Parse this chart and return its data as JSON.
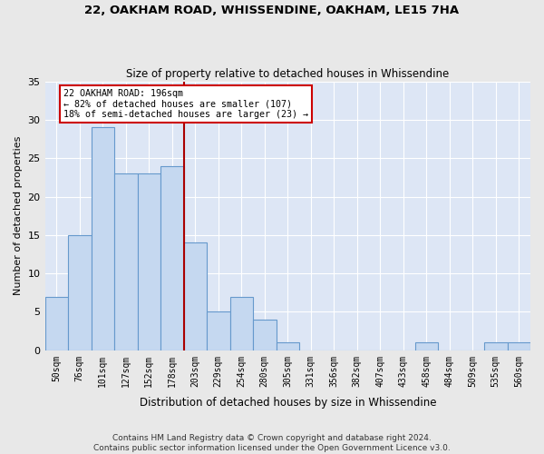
{
  "title1": "22, OAKHAM ROAD, WHISSENDINE, OAKHAM, LE15 7HA",
  "title2": "Size of property relative to detached houses in Whissendine",
  "xlabel": "Distribution of detached houses by size in Whissendine",
  "ylabel": "Number of detached properties",
  "footnote": "Contains HM Land Registry data © Crown copyright and database right 2024.\nContains public sector information licensed under the Open Government Licence v3.0.",
  "categories": [
    "50sqm",
    "76sqm",
    "101sqm",
    "127sqm",
    "152sqm",
    "178sqm",
    "203sqm",
    "229sqm",
    "254sqm",
    "280sqm",
    "305sqm",
    "331sqm",
    "356sqm",
    "382sqm",
    "407sqm",
    "433sqm",
    "458sqm",
    "484sqm",
    "509sqm",
    "535sqm",
    "560sqm"
  ],
  "values": [
    7,
    15,
    29,
    23,
    23,
    24,
    14,
    5,
    7,
    4,
    1,
    0,
    0,
    0,
    0,
    0,
    1,
    0,
    0,
    1,
    1
  ],
  "bar_color": "#c5d8f0",
  "bar_edge_color": "#6699cc",
  "background_color": "#dde6f5",
  "fig_background": "#e8e8e8",
  "property_line_label": "22 OAKHAM ROAD: 196sqm",
  "annotation_line1": "← 82% of detached houses are smaller (107)",
  "annotation_line2": "18% of semi-detached houses are larger (23) →",
  "vline_color": "#aa0000",
  "vline_x_category_index": 5.5,
  "annotation_box_color": "#ffffff",
  "annotation_box_edge": "#cc0000",
  "ylim": [
    0,
    35
  ],
  "yticks": [
    0,
    5,
    10,
    15,
    20,
    25,
    30,
    35
  ]
}
